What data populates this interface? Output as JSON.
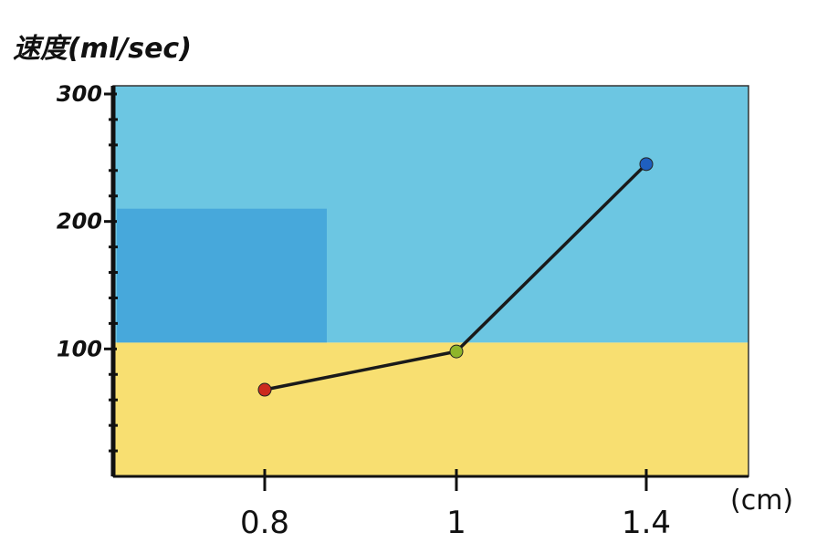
{
  "chart_data": {
    "type": "line",
    "ylabel": "速度(ml/sec)",
    "xlabel": "",
    "x_unit": "(cm)",
    "categories": [
      "0.8",
      "1",
      "1.4"
    ],
    "series": [
      {
        "values": [
          68,
          98,
          245
        ],
        "point_colors": [
          "#cc2a1e",
          "#8fb52a",
          "#1f5fbf"
        ]
      }
    ],
    "ylim": [
      0,
      300
    ],
    "yticks": [
      100,
      200,
      300
    ],
    "ytick_labels": [
      "100",
      "200",
      "300"
    ],
    "grid": false,
    "background_bands": [
      {
        "from": 0,
        "to": 105,
        "color": "#f7dc62"
      },
      {
        "from": 105,
        "to": 300,
        "color": "#5cc0df"
      }
    ],
    "line_color": "#1a1a1a"
  }
}
